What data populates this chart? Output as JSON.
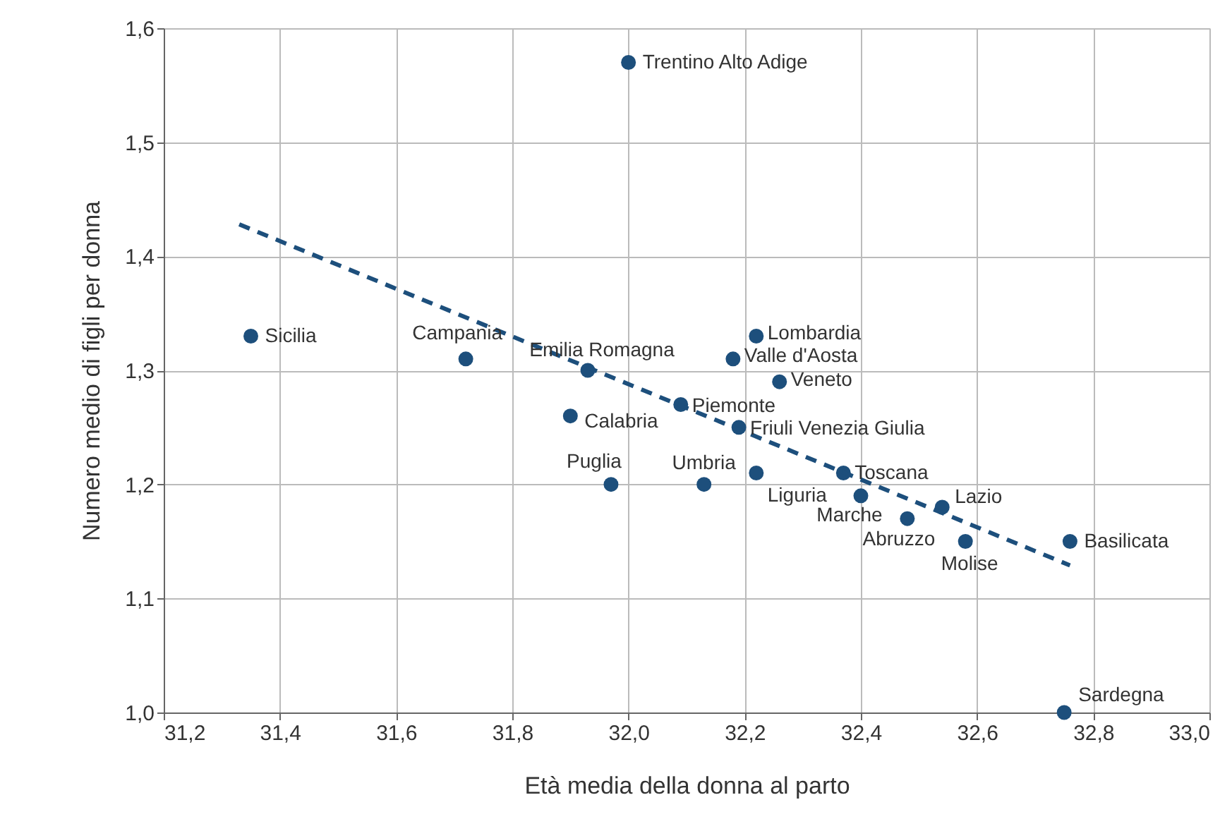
{
  "chart_data": {
    "type": "scatter",
    "xlabel": "Età media della donna al parto",
    "ylabel": "Numero medio di figli per donna",
    "xlim": [
      31.2,
      33.0
    ],
    "ylim": [
      1.0,
      1.6
    ],
    "xticks": [
      {
        "value": 31.2,
        "label": "31,2"
      },
      {
        "value": 31.4,
        "label": "31,4"
      },
      {
        "value": 31.6,
        "label": "31,6"
      },
      {
        "value": 31.8,
        "label": "31,8"
      },
      {
        "value": 32.0,
        "label": "32,0"
      },
      {
        "value": 32.2,
        "label": "32,2"
      },
      {
        "value": 32.4,
        "label": "32,4"
      },
      {
        "value": 32.6,
        "label": "32,6"
      },
      {
        "value": 32.8,
        "label": "32,8"
      },
      {
        "value": 33.0,
        "label": "33,0"
      }
    ],
    "yticks": [
      {
        "value": 1.0,
        "label": "1,0"
      },
      {
        "value": 1.1,
        "label": "1,1"
      },
      {
        "value": 1.2,
        "label": "1,2"
      },
      {
        "value": 1.3,
        "label": "1,3"
      },
      {
        "value": 1.4,
        "label": "1,4"
      },
      {
        "value": 1.5,
        "label": "1,5"
      },
      {
        "value": 1.6,
        "label": "1,6"
      }
    ],
    "grid": true,
    "marker": "circle",
    "series": [
      {
        "color": "#1d4f7c",
        "x": [
          32.0,
          31.35,
          31.72,
          31.93,
          31.9,
          31.97,
          32.09,
          32.13,
          32.19,
          32.18,
          32.22,
          32.26,
          32.22,
          32.37,
          32.4,
          32.48,
          32.54,
          32.58,
          32.76,
          32.75
        ],
        "values": [
          1.57,
          1.33,
          1.31,
          1.3,
          1.26,
          1.2,
          1.27,
          1.2,
          1.25,
          1.31,
          1.33,
          1.29,
          1.21,
          1.21,
          1.19,
          1.17,
          1.18,
          1.15,
          1.15,
          1.0
        ]
      },
      {
        "type": "line",
        "color": "#1d4f7c",
        "line_style": "dashed",
        "marker": "none",
        "x": [
          31.33,
          32.76
        ],
        "values": [
          1.428,
          1.129
        ]
      }
    ],
    "annotations": [
      {
        "text": "Trentino Alto Adige",
        "x": 32.0,
        "y": 1.57
      },
      {
        "text": "Sicilia",
        "x": 31.35,
        "y": 1.33
      },
      {
        "text": "Campania",
        "x": 31.72,
        "y": 1.31
      },
      {
        "text": "Emilia Romagna",
        "x": 31.93,
        "y": 1.3
      },
      {
        "text": "Calabria",
        "x": 31.9,
        "y": 1.26
      },
      {
        "text": "Puglia",
        "x": 31.97,
        "y": 1.2
      },
      {
        "text": "Piemonte",
        "x": 32.09,
        "y": 1.27
      },
      {
        "text": "Umbria",
        "x": 32.13,
        "y": 1.2
      },
      {
        "text": "Friuli Venezia Giulia",
        "x": 32.19,
        "y": 1.25
      },
      {
        "text": "Valle d'Aosta",
        "x": 32.18,
        "y": 1.31
      },
      {
        "text": "Lombardia",
        "x": 32.22,
        "y": 1.33
      },
      {
        "text": "Veneto",
        "x": 32.26,
        "y": 1.29
      },
      {
        "text": "Liguria",
        "x": 32.22,
        "y": 1.21
      },
      {
        "text": "Toscana",
        "x": 32.37,
        "y": 1.21
      },
      {
        "text": "Marche",
        "x": 32.4,
        "y": 1.19
      },
      {
        "text": "Abruzzo",
        "x": 32.48,
        "y": 1.17
      },
      {
        "text": "Lazio",
        "x": 32.54,
        "y": 1.18
      },
      {
        "text": "Molise",
        "x": 32.58,
        "y": 1.15
      },
      {
        "text": "Basilicata",
        "x": 32.76,
        "y": 1.15
      },
      {
        "text": "Sardegna",
        "x": 32.75,
        "y": 1.0
      }
    ]
  }
}
